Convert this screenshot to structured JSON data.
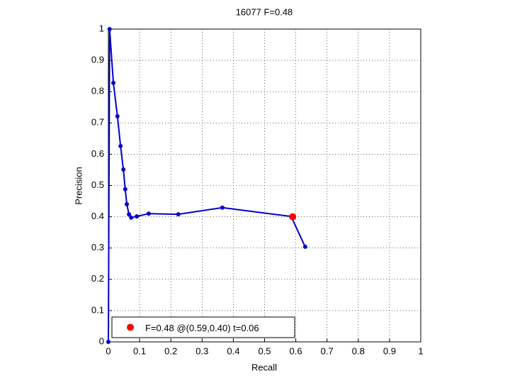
{
  "chart_data": {
    "type": "line",
    "title": "16077 F=0.48",
    "x_label": "Recall",
    "y_label": "Precision",
    "xlim": [
      0,
      1
    ],
    "ylim": [
      0,
      1
    ],
    "xticks": [
      0,
      0.1,
      0.2,
      0.3,
      0.4,
      0.5,
      0.6,
      0.7,
      0.8,
      0.9,
      1
    ],
    "yticks": [
      0,
      0.1,
      0.2,
      0.3,
      0.4,
      0.5,
      0.6,
      0.7,
      0.8,
      0.9,
      1
    ],
    "grid": true,
    "legend": "lower left",
    "series": [
      {
        "color": "#0000cc",
        "marker": "dot",
        "x": [
          0,
          0.004,
          0.016,
          0.029,
          0.039,
          0.048,
          0.054,
          0.059,
          0.066,
          0.073,
          0.091,
          0.129,
          0.224,
          0.365,
          0.585,
          0.63
        ],
        "values": [
          0,
          1,
          0.828,
          0.721,
          0.626,
          0.551,
          0.488,
          0.44,
          0.408,
          0.397,
          0.401,
          0.41,
          0.408,
          0.429,
          0.401,
          0.304
        ]
      },
      {
        "name": "F=0.48 @(0.59,0.40) t=0.06",
        "color": "#ff0000",
        "marker": "big-dot",
        "x": [
          0.59
        ],
        "values": [
          0.4
        ]
      }
    ]
  }
}
